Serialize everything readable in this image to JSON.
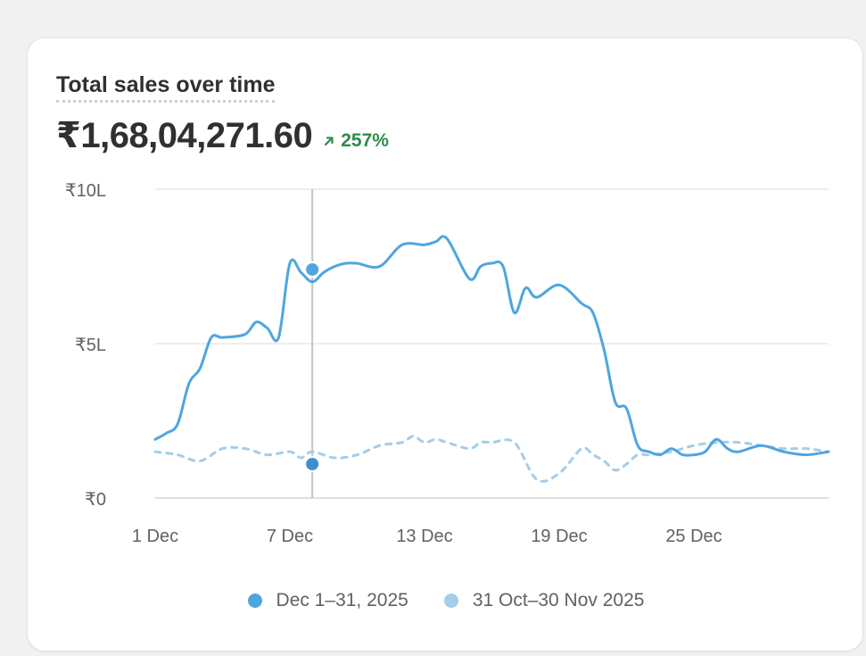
{
  "card": {
    "title": "Total sales over time",
    "total": "₹1,68,04,271.60",
    "change": "257%"
  },
  "colors": {
    "primary": "#4ea5e0",
    "comparison": "#a3cde9",
    "marker_comparison": "#3f8ed0",
    "positive": "#2f8c4a"
  },
  "chart_data": {
    "type": "line",
    "title": "Total sales over time",
    "xlabel": "",
    "ylabel": "",
    "ylim": [
      0,
      1000000
    ],
    "yticks": [
      {
        "value": 0,
        "label": "₹0"
      },
      {
        "value": 500000,
        "label": "₹5L"
      },
      {
        "value": 1000000,
        "label": "₹10L"
      }
    ],
    "xticks": [
      {
        "day": 1,
        "label": "1 Dec"
      },
      {
        "day": 7,
        "label": "7 Dec"
      },
      {
        "day": 13,
        "label": "13 Dec"
      },
      {
        "day": 19,
        "label": "19 Dec"
      },
      {
        "day": 25,
        "label": "25 Dec"
      }
    ],
    "grid": true,
    "legend": "bottom-center",
    "hover_day": 8,
    "series": [
      {
        "name": "Dec 1–31, 2025",
        "style": "solid",
        "x": [
          1,
          1.5,
          2,
          2.5,
          3,
          3.5,
          4,
          5,
          5.5,
          6,
          6.5,
          7,
          7.5,
          8,
          8.5,
          9,
          9.5,
          10,
          11,
          12,
          13,
          13.5,
          14,
          15,
          15.5,
          16,
          16.5,
          17,
          17.5,
          18,
          19,
          20,
          20.5,
          21,
          21.5,
          22,
          22.5,
          23,
          23.5,
          24,
          24.5,
          25,
          25.5,
          26,
          26.5,
          27,
          28,
          29,
          30,
          31
        ],
        "values": [
          190000,
          210000,
          240000,
          370000,
          420000,
          520000,
          520000,
          530000,
          570000,
          550000,
          520000,
          760000,
          730000,
          700000,
          730000,
          750000,
          760000,
          760000,
          750000,
          820000,
          820000,
          830000,
          840000,
          710000,
          750000,
          760000,
          750000,
          600000,
          680000,
          650000,
          690000,
          630000,
          600000,
          480000,
          310000,
          290000,
          170000,
          150000,
          140000,
          160000,
          140000,
          140000,
          150000,
          190000,
          160000,
          150000,
          170000,
          150000,
          140000,
          150000
        ]
      },
      {
        "name": "31 Oct–30 Nov 2025",
        "style": "dashed",
        "x": [
          1,
          2,
          3,
          4,
          5,
          6,
          7,
          7.5,
          8,
          9,
          10,
          11,
          12,
          12.5,
          13,
          13.5,
          14,
          15,
          15.5,
          16,
          17,
          18,
          19,
          20,
          20.5,
          21,
          21.5,
          22,
          22.5,
          23,
          24,
          25,
          26,
          27,
          28,
          29,
          30,
          31
        ],
        "values": [
          150000,
          140000,
          120000,
          160000,
          160000,
          140000,
          150000,
          130000,
          150000,
          130000,
          140000,
          170000,
          180000,
          200000,
          180000,
          190000,
          180000,
          160000,
          180000,
          180000,
          180000,
          60000,
          80000,
          160000,
          140000,
          120000,
          90000,
          110000,
          140000,
          140000,
          150000,
          170000,
          180000,
          180000,
          170000,
          160000,
          160000,
          150000
        ]
      }
    ],
    "hover_values": [
      740000,
      110000
    ]
  }
}
